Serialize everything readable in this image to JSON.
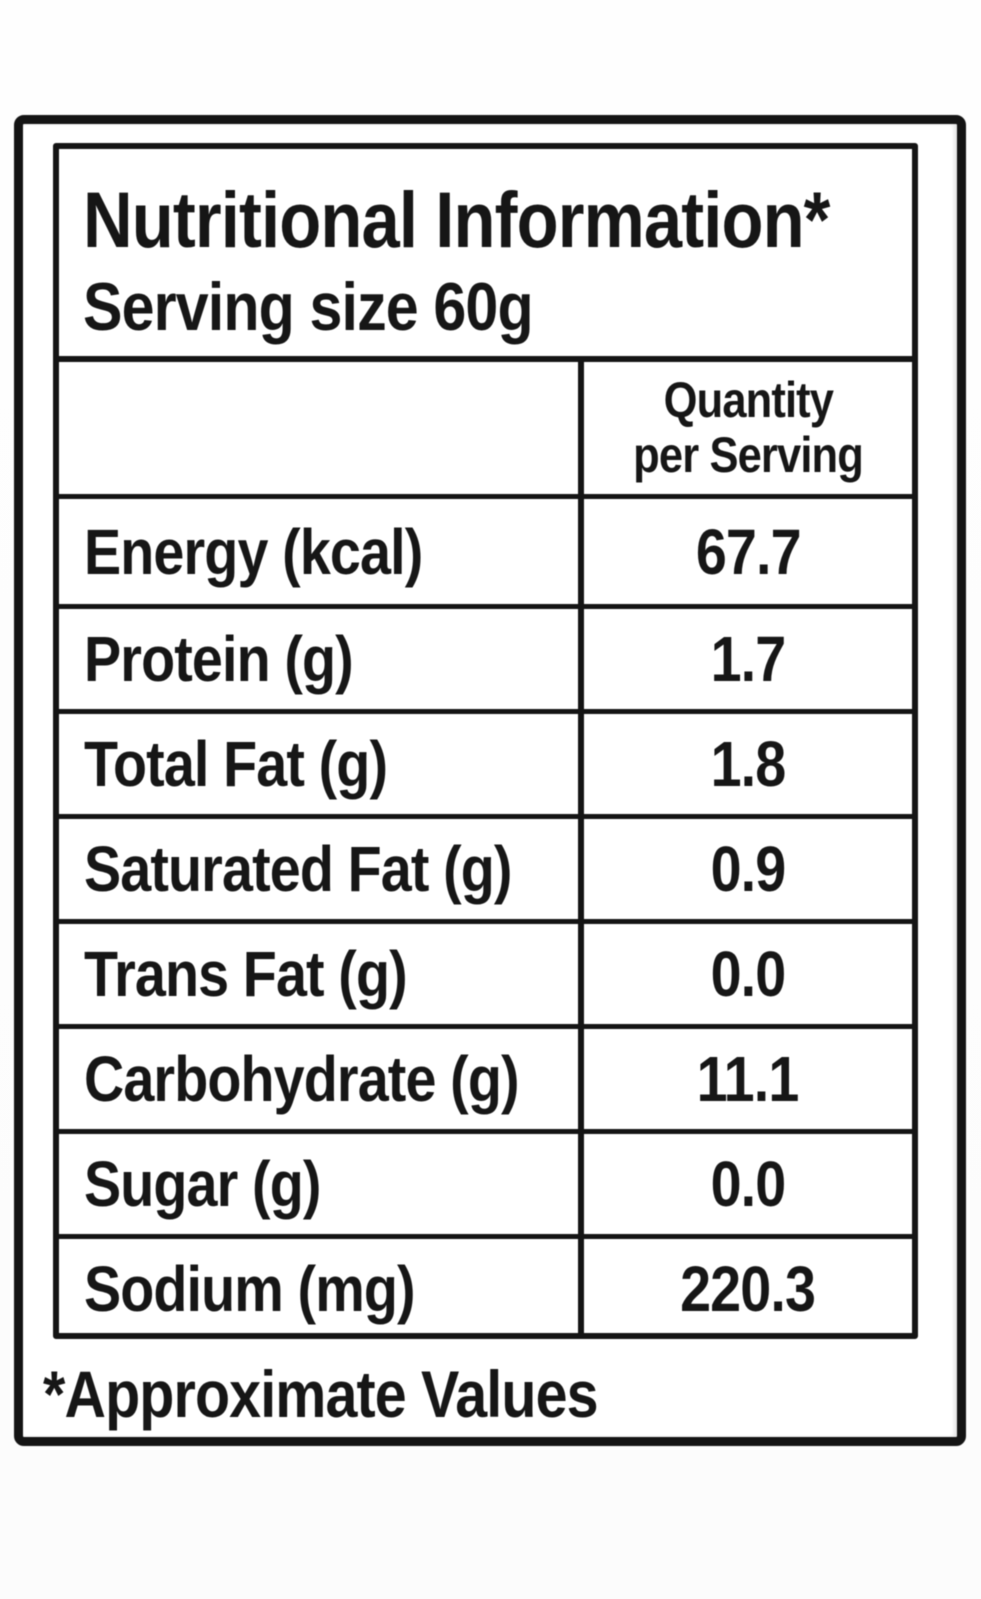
{
  "label": {
    "title": "Nutritional Information*",
    "serving_size": "Serving size 60g",
    "column_header": {
      "line1": "Quantity",
      "line2": "per Serving"
    },
    "rows": [
      {
        "label": "Energy (kcal)",
        "value": "67.7"
      },
      {
        "label": "Protein (g)",
        "value": "1.7"
      },
      {
        "label": "Total Fat (g)",
        "value": "1.8"
      },
      {
        "label": "Saturated Fat (g)",
        "value": "0.9"
      },
      {
        "label": "Trans Fat (g)",
        "value": "0.0"
      },
      {
        "label": "Carbohydrate (g)",
        "value": "11.1"
      },
      {
        "label": "Sugar (g)",
        "value": "0.0"
      },
      {
        "label": "Sodium (mg)",
        "value": "220.3"
      }
    ],
    "footnote": "*Approximate Values"
  },
  "colors": {
    "ink": "#161616",
    "paper": "#ffffff",
    "page_bg": "#fdfdfd"
  }
}
